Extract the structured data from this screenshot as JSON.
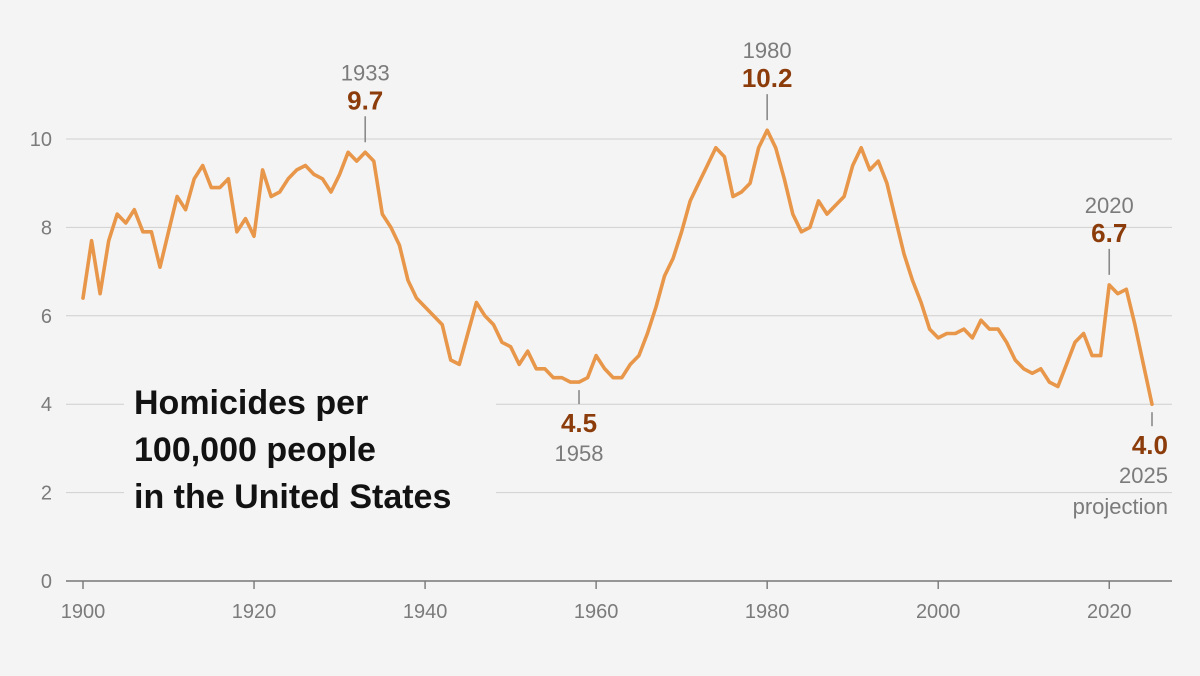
{
  "chart_data": {
    "type": "line",
    "title_lines": [
      "Homicides per",
      "100,000 people",
      "in the United States"
    ],
    "xlabel": "",
    "ylabel": "",
    "xlim": [
      1900,
      2025
    ],
    "ylim": [
      0,
      10
    ],
    "x_ticks": [
      "1900",
      "1920",
      "1940",
      "1960",
      "1980",
      "2000",
      "2020"
    ],
    "y_ticks": [
      "0",
      "2",
      "4",
      "6",
      "8",
      "10"
    ],
    "grid": true,
    "colors": {
      "line": "#e8974a",
      "annotation_value": "#8b3c0a",
      "annotation_year": "#7b7b7b"
    },
    "series": [
      {
        "x": [
          1900,
          1901,
          1902,
          1903,
          1904,
          1905,
          1906,
          1907,
          1908,
          1909,
          1910,
          1911,
          1912,
          1913,
          1914,
          1915,
          1916,
          1917,
          1918,
          1919,
          1920,
          1921,
          1922,
          1923,
          1924,
          1925,
          1926,
          1927,
          1928,
          1929,
          1930,
          1931,
          1932,
          1933,
          1934,
          1935,
          1936,
          1937,
          1938,
          1939,
          1940,
          1941,
          1942,
          1943,
          1944,
          1945,
          1946,
          1947,
          1948,
          1949,
          1950,
          1951,
          1952,
          1953,
          1954,
          1955,
          1956,
          1957,
          1958,
          1959,
          1960,
          1961,
          1962,
          1963,
          1964,
          1965,
          1966,
          1967,
          1968,
          1969,
          1970,
          1971,
          1972,
          1973,
          1974,
          1975,
          1976,
          1977,
          1978,
          1979,
          1980,
          1981,
          1982,
          1983,
          1984,
          1985,
          1986,
          1987,
          1988,
          1989,
          1990,
          1991,
          1992,
          1993,
          1994,
          1995,
          1996,
          1997,
          1998,
          1999,
          2000,
          2001,
          2002,
          2003,
          2004,
          2005,
          2006,
          2007,
          2008,
          2009,
          2010,
          2011,
          2012,
          2013,
          2014,
          2015,
          2016,
          2017,
          2018,
          2019,
          2020,
          2021,
          2022,
          2023,
          2024,
          2025
        ],
        "values": [
          6.4,
          7.7,
          6.5,
          7.7,
          8.3,
          8.1,
          8.4,
          7.9,
          7.9,
          7.1,
          7.9,
          8.7,
          8.4,
          9.1,
          9.4,
          8.9,
          8.9,
          9.1,
          7.9,
          8.2,
          7.8,
          9.3,
          8.7,
          8.8,
          9.1,
          9.3,
          9.4,
          9.2,
          9.1,
          8.8,
          9.2,
          9.7,
          9.5,
          9.7,
          9.5,
          8.3,
          8.0,
          7.6,
          6.8,
          6.4,
          6.2,
          6.0,
          5.8,
          5.0,
          4.9,
          5.6,
          6.3,
          6.0,
          5.8,
          5.4,
          5.3,
          4.9,
          5.2,
          4.8,
          4.8,
          4.6,
          4.6,
          4.5,
          4.5,
          4.6,
          5.1,
          4.8,
          4.6,
          4.6,
          4.9,
          5.1,
          5.6,
          6.2,
          6.9,
          7.3,
          7.9,
          8.6,
          9.0,
          9.4,
          9.8,
          9.6,
          8.7,
          8.8,
          9.0,
          9.8,
          10.2,
          9.8,
          9.1,
          8.3,
          7.9,
          8.0,
          8.6,
          8.3,
          8.5,
          8.7,
          9.4,
          9.8,
          9.3,
          9.5,
          9.0,
          8.2,
          7.4,
          6.8,
          6.3,
          5.7,
          5.5,
          5.6,
          5.6,
          5.7,
          5.5,
          5.9,
          5.7,
          5.7,
          5.4,
          5.0,
          4.8,
          4.7,
          4.8,
          4.5,
          4.4,
          4.9,
          5.4,
          5.6,
          5.1,
          5.1,
          6.7,
          6.5,
          6.6,
          5.8,
          4.9,
          4.0
        ]
      }
    ],
    "annotations": [
      {
        "x": 1933,
        "y": 9.7,
        "year_text": "1933",
        "value_text": "9.7",
        "position": "above"
      },
      {
        "x": 1980,
        "y": 10.2,
        "year_text": "1980",
        "value_text": "10.2",
        "position": "above"
      },
      {
        "x": 2020,
        "y": 6.7,
        "year_text": "2020",
        "value_text": "6.7",
        "position": "above"
      },
      {
        "x": 1958,
        "y": 4.5,
        "year_text": "1958",
        "value_text": "4.5",
        "position": "below"
      },
      {
        "x": 2025,
        "y": 4.0,
        "year_text": "2025",
        "extra_text": "projection",
        "value_text": "4.0",
        "position": "below"
      }
    ]
  }
}
